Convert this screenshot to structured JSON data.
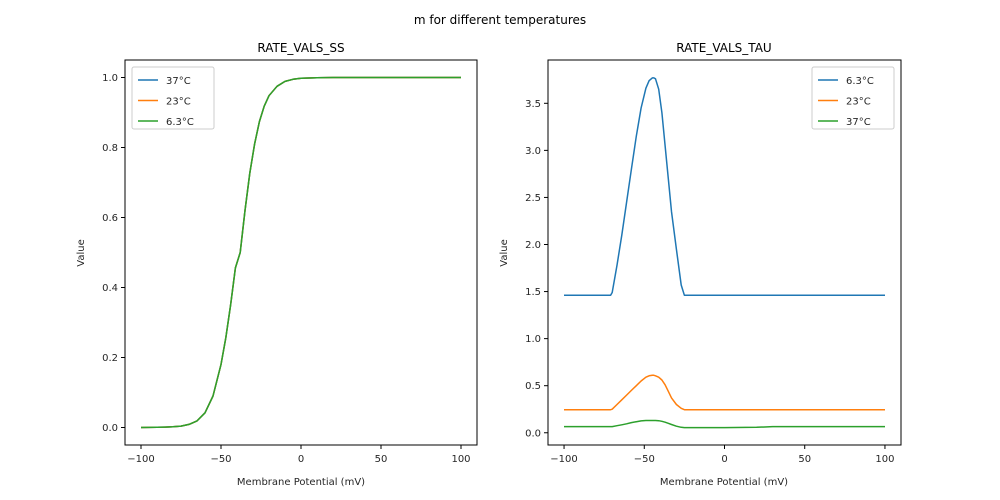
{
  "suptitle": "m for different temperatures",
  "chart_data": [
    {
      "type": "line",
      "title": "RATE_VALS_SS",
      "xlabel": "Membrane Potential (mV)",
      "ylabel": "Value",
      "xlim": [
        -110,
        110
      ],
      "ylim": [
        -0.05,
        1.05
      ],
      "xticks": [
        -100,
        -50,
        0,
        50,
        100
      ],
      "xtick_labels": [
        "−100",
        "−50",
        "0",
        "50",
        "100"
      ],
      "yticks": [
        0.0,
        0.2,
        0.4,
        0.6,
        0.8,
        1.0
      ],
      "ytick_labels": [
        "0.0",
        "0.2",
        "0.4",
        "0.6",
        "0.8",
        "1.0"
      ],
      "grid": false,
      "legend": "top-left",
      "x": [
        -100,
        -95,
        -90,
        -85,
        -80,
        -75,
        -70,
        -65,
        -60,
        -55,
        -50,
        -47,
        -44,
        -41,
        -38,
        -35,
        -32,
        -29,
        -26,
        -23,
        -20,
        -15,
        -10,
        -5,
        0,
        10,
        20,
        40,
        60,
        80,
        100
      ],
      "series": [
        {
          "name": "37°C",
          "color": "#1f77b4",
          "values": [
            0.0001,
            0.0002,
            0.0005,
            0.001,
            0.002,
            0.004,
            0.009,
            0.019,
            0.042,
            0.09,
            0.18,
            0.256,
            0.35,
            0.456,
            0.5,
            0.62,
            0.727,
            0.81,
            0.874,
            0.918,
            0.948,
            0.975,
            0.989,
            0.995,
            0.998,
            0.9995,
            0.9999,
            1.0,
            1.0,
            1.0,
            1.0
          ]
        },
        {
          "name": "23°C",
          "color": "#ff7f0e",
          "values": [
            0.0001,
            0.0002,
            0.0005,
            0.001,
            0.002,
            0.004,
            0.009,
            0.019,
            0.042,
            0.09,
            0.18,
            0.256,
            0.35,
            0.456,
            0.5,
            0.62,
            0.727,
            0.81,
            0.874,
            0.918,
            0.948,
            0.975,
            0.989,
            0.995,
            0.998,
            0.9995,
            0.9999,
            1.0,
            1.0,
            1.0,
            1.0
          ]
        },
        {
          "name": "6.3°C",
          "color": "#2ca02c",
          "values": [
            0.0001,
            0.0002,
            0.0005,
            0.001,
            0.002,
            0.004,
            0.009,
            0.019,
            0.042,
            0.09,
            0.18,
            0.256,
            0.35,
            0.456,
            0.5,
            0.62,
            0.727,
            0.81,
            0.874,
            0.918,
            0.948,
            0.975,
            0.989,
            0.995,
            0.998,
            0.9995,
            0.9999,
            1.0,
            1.0,
            1.0,
            1.0
          ]
        }
      ]
    },
    {
      "type": "line",
      "title": "RATE_VALS_TAU",
      "xlabel": "Membrane Potential (mV)",
      "ylabel": "Value",
      "xlim": [
        -110,
        110
      ],
      "ylim": [
        -0.13,
        3.96
      ],
      "xticks": [
        -100,
        -50,
        0,
        50,
        100
      ],
      "xtick_labels": [
        "−100",
        "−50",
        "0",
        "50",
        "100"
      ],
      "yticks": [
        0.0,
        0.5,
        1.0,
        1.5,
        2.0,
        2.5,
        3.0,
        3.5
      ],
      "ytick_labels": [
        "0.0",
        "0.5",
        "1.0",
        "1.5",
        "2.0",
        "2.5",
        "3.0",
        "3.5"
      ],
      "grid": false,
      "legend": "top-right",
      "x": [
        -100,
        -71,
        -70,
        -67,
        -64,
        -61,
        -58,
        -55,
        -52,
        -49,
        -47,
        -45,
        -44,
        -43,
        -41,
        -39,
        -37,
        -35,
        -33,
        -30,
        -27,
        -25,
        -24,
        0,
        20,
        30,
        50,
        100
      ],
      "series": [
        {
          "name": "6.3°C",
          "color": "#1f77b4",
          "values": [
            1.46,
            1.46,
            1.49,
            1.78,
            2.1,
            2.45,
            2.8,
            3.15,
            3.45,
            3.66,
            3.74,
            3.77,
            3.77,
            3.76,
            3.65,
            3.4,
            3.05,
            2.7,
            2.35,
            1.95,
            1.57,
            1.46,
            1.46,
            1.46,
            1.46,
            1.46,
            1.46,
            1.46
          ]
        },
        {
          "name": "23°C",
          "color": "#ff7f0e",
          "values": [
            0.245,
            0.245,
            0.25,
            0.3,
            0.35,
            0.4,
            0.45,
            0.5,
            0.55,
            0.59,
            0.605,
            0.61,
            0.61,
            0.605,
            0.59,
            0.56,
            0.51,
            0.44,
            0.37,
            0.3,
            0.26,
            0.245,
            0.245,
            0.245,
            0.245,
            0.245,
            0.245,
            0.245
          ]
        },
        {
          "name": "37°C",
          "color": "#2ca02c",
          "values": [
            0.065,
            0.065,
            0.066,
            0.075,
            0.085,
            0.095,
            0.108,
            0.118,
            0.126,
            0.13,
            0.13,
            0.13,
            0.13,
            0.13,
            0.128,
            0.122,
            0.112,
            0.1,
            0.088,
            0.07,
            0.058,
            0.055,
            0.055,
            0.055,
            0.058,
            0.065,
            0.065,
            0.065
          ]
        }
      ]
    }
  ]
}
